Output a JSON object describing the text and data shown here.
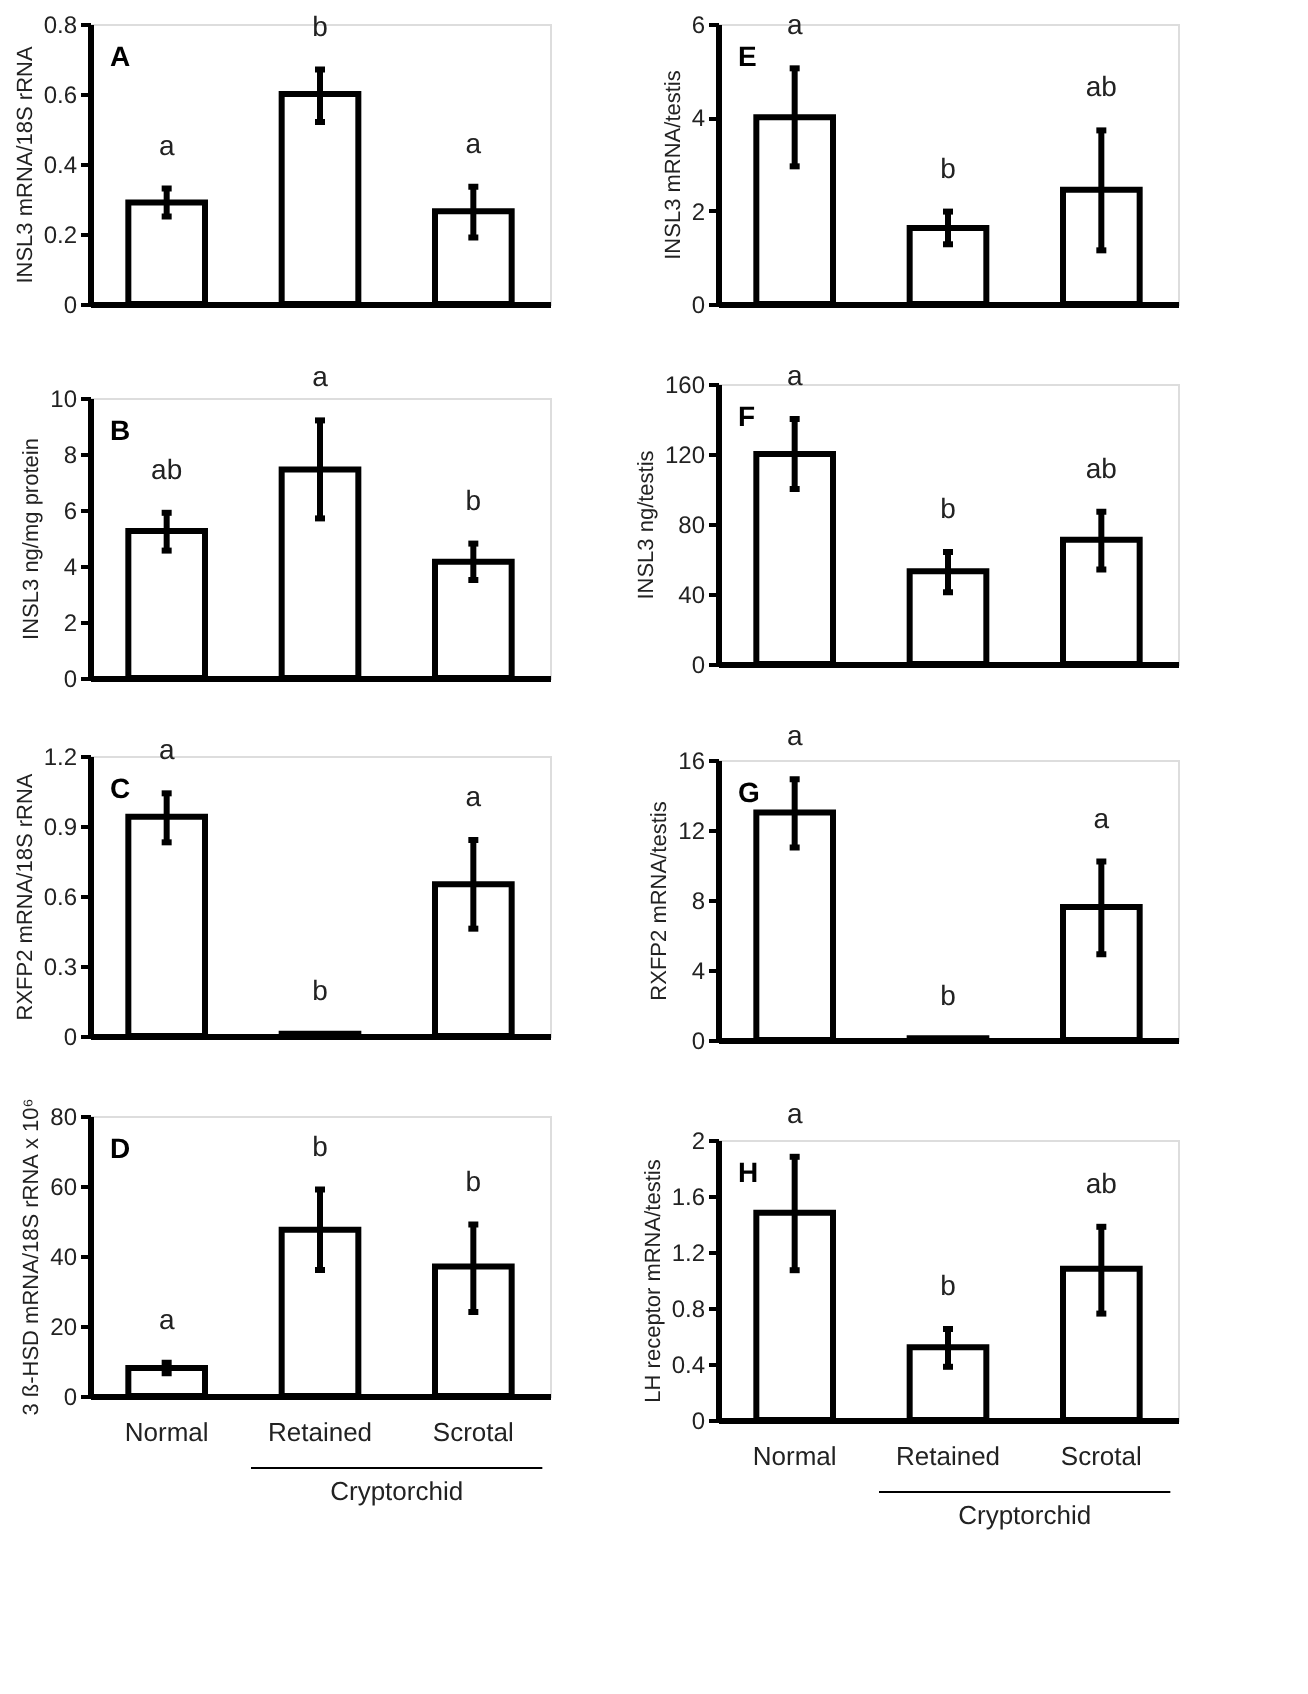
{
  "chart_data": [
    {
      "type": "bar",
      "categories": [
        "Normal",
        "Retained",
        "Scrotal"
      ],
      "ylabel": "INSL3 mRNA/18S rRNA",
      "values": [
        0.29,
        0.6,
        0.265
      ],
      "errors": [
        [
          0.25,
          0.33
        ],
        [
          0.52,
          0.67
        ],
        [
          0.19,
          0.335
        ]
      ],
      "color": "#ffffff",
      "ylim": [
        0,
        0.8
      ],
      "yticks": [
        0,
        0.2,
        0.4,
        0.6,
        0.8
      ],
      "tick_labels": "y",
      "grid": false,
      "annotations": [
        "A",
        {
          "text": "a",
          "x": "Normal",
          "y": 0.33
        },
        {
          "text": "b",
          "x": "Retained",
          "y": 0.67
        },
        {
          "text": "a",
          "x": "Scrotal",
          "y": 0.335
        }
      ]
    },
    {
      "type": "bar",
      "categories": [
        "Normal",
        "Retained",
        "Scrotal"
      ],
      "ylabel": "INSL3 ng/mg protein",
      "values": [
        5.25,
        7.45,
        4.15
      ],
      "errors": [
        [
          4.55,
          5.9
        ],
        [
          5.7,
          9.2
        ],
        [
          3.5,
          4.8
        ]
      ],
      "color": "#ffffff",
      "ylim": [
        0,
        10
      ],
      "yticks": [
        0,
        2,
        4,
        6,
        8,
        10
      ],
      "tick_labels": "y",
      "grid": false,
      "annotations": [
        "B",
        {
          "text": "ab",
          "x": "Normal",
          "y": 5.9
        },
        {
          "text": "a",
          "x": "Retained",
          "y": 9.2
        },
        {
          "text": "b",
          "x": "Scrotal",
          "y": 4.8
        }
      ]
    },
    {
      "type": "bar",
      "categories": [
        "Normal",
        "Retained",
        "Scrotal"
      ],
      "ylabel": "RXFP2 mRNA/18S rRNA",
      "values": [
        0.94,
        0.01,
        0.65
      ],
      "errors": [
        [
          0.83,
          1.04
        ],
        null,
        [
          0.46,
          0.84
        ]
      ],
      "color": "#ffffff",
      "ylim": [
        0,
        1.2
      ],
      "yticks": [
        {
          "value": 0,
          "label": "0"
        },
        {
          "value": 0.3,
          "label": "0.3"
        },
        {
          "value": 0.6,
          "label": "0.6"
        },
        {
          "value": 0.9,
          "label": "0.9"
        },
        {
          "value": 1.2,
          "label": "1.2"
        }
      ],
      "tick_labels": "y",
      "grid": false,
      "annotations": [
        "C",
        {
          "text": "a",
          "x": "Normal",
          "y": 1.04
        },
        {
          "text": "b",
          "x": "Retained",
          "y": 0.01
        },
        {
          "text": "a",
          "x": "Scrotal",
          "y": 0.84
        }
      ]
    },
    {
      "type": "bar",
      "categories": [
        "Normal",
        "Retained",
        "Scrotal"
      ],
      "ylabel": "3 ß-HSD mRNA/18S rRNA x 10⁶",
      "values": [
        8,
        47.5,
        37
      ],
      "errors": [
        [
          6.5,
          9.5
        ],
        [
          36,
          59
        ],
        [
          24,
          49
        ]
      ],
      "color": "#ffffff",
      "ylim": [
        0,
        80
      ],
      "yticks": [
        0,
        20,
        40,
        60,
        80
      ],
      "grid": false,
      "annotations": [
        "D",
        "Cryptorchid",
        {
          "text": "a",
          "x": "Normal",
          "y": 9.5
        },
        {
          "text": "b",
          "x": "Retained",
          "y": 59
        },
        {
          "text": "b",
          "x": "Scrotal",
          "y": 49
        }
      ]
    },
    {
      "type": "bar",
      "categories": [
        "Normal",
        "Retained",
        "Scrotal"
      ],
      "ylabel": "INSL3 mRNA/testis",
      "values": [
        4.0,
        1.63,
        2.45
      ],
      "errors": [
        [
          2.95,
          5.05
        ],
        [
          1.28,
          1.98
        ],
        [
          1.15,
          3.72
        ]
      ],
      "color": "#ffffff",
      "ylim": [
        0,
        6
      ],
      "yticks": [
        0,
        2,
        4,
        6
      ],
      "tick_labels": "y",
      "grid": false,
      "annotations": [
        "E",
        {
          "text": "a",
          "x": "Normal",
          "y": 5.05
        },
        {
          "text": "b",
          "x": "Retained",
          "y": 1.98
        },
        {
          "text": "ab",
          "x": "Scrotal",
          "y": 3.72
        }
      ]
    },
    {
      "type": "bar",
      "categories": [
        "Normal",
        "Retained",
        "Scrotal"
      ],
      "ylabel": "INSL3 ng/testis",
      "values": [
        120,
        53,
        71
      ],
      "errors": [
        [
          100,
          140
        ],
        [
          41,
          64
        ],
        [
          54,
          87
        ]
      ],
      "color": "#ffffff",
      "ylim": [
        0,
        160
      ],
      "yticks": [
        0,
        40,
        80,
        120,
        160
      ],
      "tick_labels": "y",
      "grid": false,
      "annotations": [
        "F",
        {
          "text": "a",
          "x": "Normal",
          "y": 140
        },
        {
          "text": "b",
          "x": "Retained",
          "y": 64
        },
        {
          "text": "ab",
          "x": "Scrotal",
          "y": 87
        }
      ]
    },
    {
      "type": "bar",
      "categories": [
        "Normal",
        "Retained",
        "Scrotal"
      ],
      "ylabel": "RXFP2 mRNA/testis",
      "values": [
        13.0,
        0.1,
        7.6
      ],
      "errors": [
        [
          11.0,
          14.9
        ],
        null,
        [
          4.9,
          10.2
        ]
      ],
      "color": "#ffffff",
      "ylim": [
        0,
        16
      ],
      "yticks": [
        0,
        4,
        8,
        12,
        16
      ],
      "tick_labels": "y",
      "grid": false,
      "annotations": [
        "G",
        {
          "text": "a",
          "x": "Normal",
          "y": 14.9
        },
        {
          "text": "b",
          "x": "Retained",
          "y": 0.05
        },
        {
          "text": "a",
          "x": "Scrotal",
          "y": 10.2
        }
      ]
    },
    {
      "type": "bar",
      "categories": [
        "Normal",
        "Retained",
        "Scrotal"
      ],
      "ylabel": "LH receptor mRNA/testis",
      "values": [
        1.48,
        0.52,
        1.08
      ],
      "errors": [
        [
          1.07,
          1.88
        ],
        [
          0.38,
          0.65
        ],
        [
          0.76,
          1.38
        ]
      ],
      "color": "#ffffff",
      "ylim": [
        0,
        2
      ],
      "yticks": [
        0,
        0.4,
        0.8,
        1.2,
        1.6,
        2
      ],
      "grid": false,
      "annotations": [
        "H",
        "Cryptorchid",
        {
          "text": "a",
          "x": "Normal",
          "y": 1.88
        },
        {
          "text": "b",
          "x": "Retained",
          "y": 0.65
        },
        {
          "text": "ab",
          "x": "Scrotal",
          "y": 1.38
        }
      ]
    }
  ]
}
